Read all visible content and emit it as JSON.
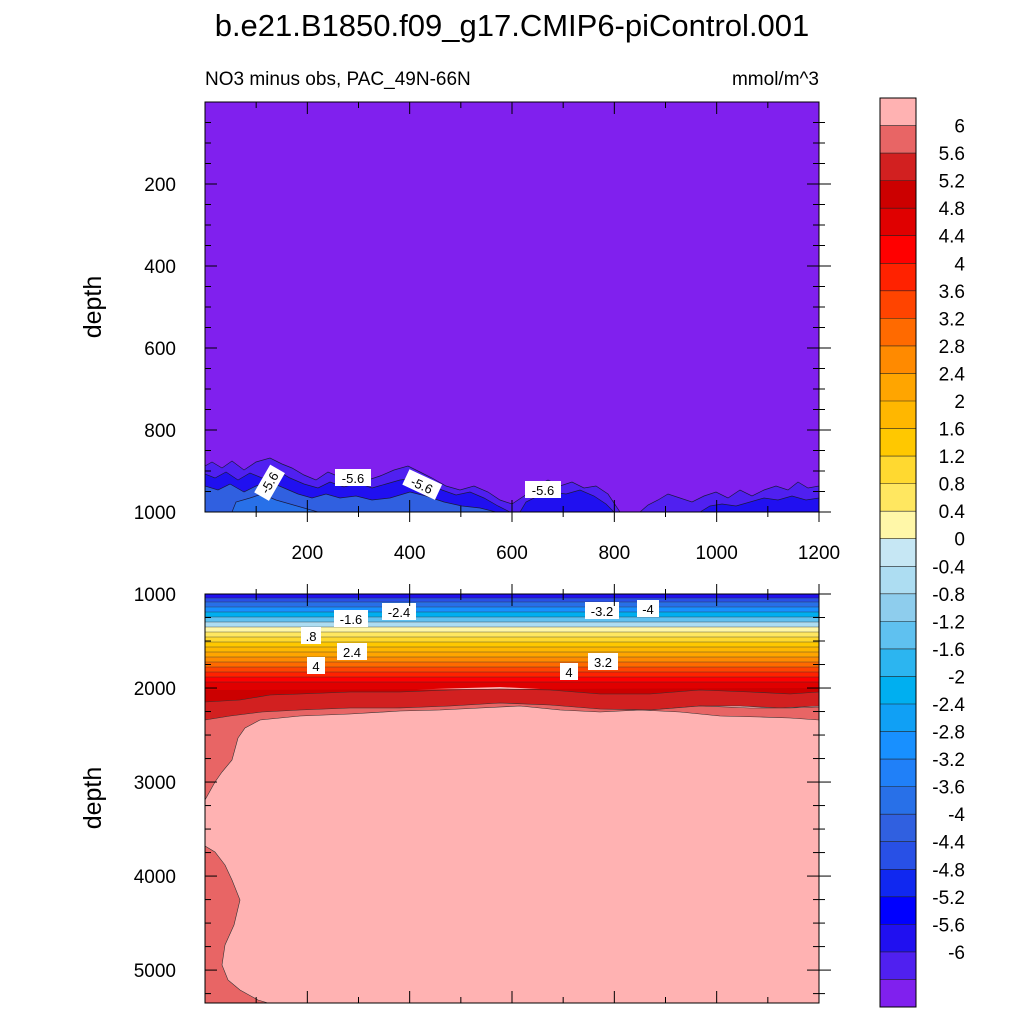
{
  "figure": {
    "title": "b.e21.B1850.f09_g17.CMIP6-piControl.001"
  },
  "chart_data": [
    {
      "type": "heatmap",
      "panel": "upper",
      "subtitle_left": "NO3 minus obs, PAC_49N-66N",
      "subtitle_right": "mmol/m^3",
      "xlabel": "",
      "ylabel": "depth",
      "xlim": [
        0,
        1200
      ],
      "ylim": [
        1000,
        0
      ],
      "xticks": [
        "200",
        "400",
        "600",
        "800",
        "1000",
        "1200"
      ],
      "yticks": [
        "200",
        "400",
        "600",
        "800",
        "1000"
      ],
      "dominant_value": -6,
      "contour_labels": [
        "-5.6",
        "-5.6",
        "-5.6",
        "-5.6"
      ]
    },
    {
      "type": "heatmap",
      "panel": "lower",
      "xlabel": "",
      "ylabel": "depth",
      "xlim": [
        0,
        1200
      ],
      "ylim": [
        5350,
        1000
      ],
      "yticks": [
        "1000",
        "2000",
        "3000",
        "4000",
        "5000"
      ],
      "dominant_value": 6,
      "contour_labels": [
        "-1.6",
        "-2.4",
        "-3.2",
        "-4",
        ".8",
        "2.4",
        "4",
        "3.2",
        "4"
      ]
    }
  ],
  "colorbar": {
    "labels": [
      "6",
      "5.6",
      "5.2",
      "4.8",
      "4.4",
      "4",
      "3.6",
      "3.2",
      "2.8",
      "2.4",
      "2",
      "1.6",
      "1.2",
      "0.8",
      "0.4",
      "0",
      "-0.4",
      "-0.8",
      "-1.2",
      "-1.6",
      "-2",
      "-2.4",
      "-2.8",
      "-3.2",
      "-3.6",
      "-4",
      "-4.4",
      "-4.8",
      "-5.2",
      "-5.6",
      "-6"
    ],
    "colors": [
      "#FFB2B2",
      "#E86565",
      "#D22020",
      "#CC0000",
      "#E00000",
      "#FF0000",
      "#FF2200",
      "#FF4400",
      "#FF6A00",
      "#FF8A00",
      "#FFA500",
      "#FFB700",
      "#FFC800",
      "#FFD930",
      "#FFE760",
      "#FFF7A8",
      "#C6E7F4",
      "#ADDDF2",
      "#8ECDED",
      "#5FC1F0",
      "#2CB5F0",
      "#00AFF0",
      "#10A0F5",
      "#1890FF",
      "#2080F8",
      "#2870E8",
      "#3060E0",
      "#2850E6",
      "#1028F0",
      "#0000FF",
      "#2010F0",
      "#5020F0",
      "#8020EE"
    ]
  }
}
